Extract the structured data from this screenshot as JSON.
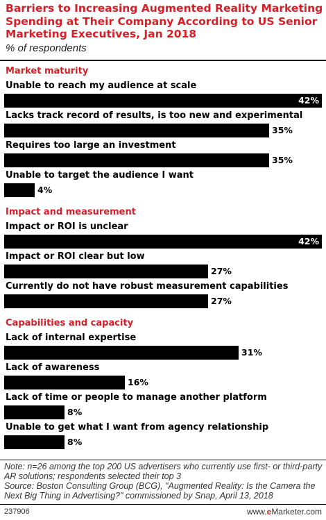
{
  "title": "Barriers to Increasing Augmented Reality Marketing Spending at Their Company According to US Senior Marketing Executives, Jan 2018",
  "subtitle": "% of respondents",
  "note": "Note: n=26 among the top 200 US advertisers who currently use first- or third-party AR solutions; respondents selected their top 3",
  "source": "Source: Boston Consulting Group (BCG), \"Augmented Reality: Is the Camera the Next Big Thing in Advertising?\" commissioned by Snap, April 13, 2018",
  "footer": {
    "chart_id": "237906",
    "brand_prefix": "www.",
    "brand_e": "e",
    "brand_suffix": "Marketer.com"
  },
  "colors": {
    "accent": "#d61f26",
    "bar": "#000000",
    "bar_value_inside": "#ffffff"
  },
  "chart_data": {
    "type": "bar",
    "orientation": "horizontal",
    "title": "Barriers to Increasing Augmented Reality Marketing Spending at Their Company According to US Senior Marketing Executives, Jan 2018",
    "unit": "%",
    "xlim": [
      0,
      42
    ],
    "grid": false,
    "groups": [
      {
        "name": "Market maturity",
        "categories": [
          "Unable to reach my audience at scale",
          "Lacks track record of results, is too new and experimental",
          "Requires too large an investment",
          "Unable to target the audience I want"
        ],
        "values": [
          42,
          35,
          35,
          4
        ]
      },
      {
        "name": "Impact and measurement",
        "categories": [
          "Impact or ROI is unclear",
          "Impact or ROI clear but low",
          "Currently do not have robust measurement capabilities"
        ],
        "values": [
          42,
          27,
          27
        ]
      },
      {
        "name": "Capabilities and capacity",
        "categories": [
          "Lack of internal expertise",
          "Lack of awareness",
          "Lack of time or people to manage another platform",
          "Unable to get what I want from agency relationship"
        ],
        "values": [
          31,
          16,
          8,
          8
        ]
      }
    ]
  }
}
